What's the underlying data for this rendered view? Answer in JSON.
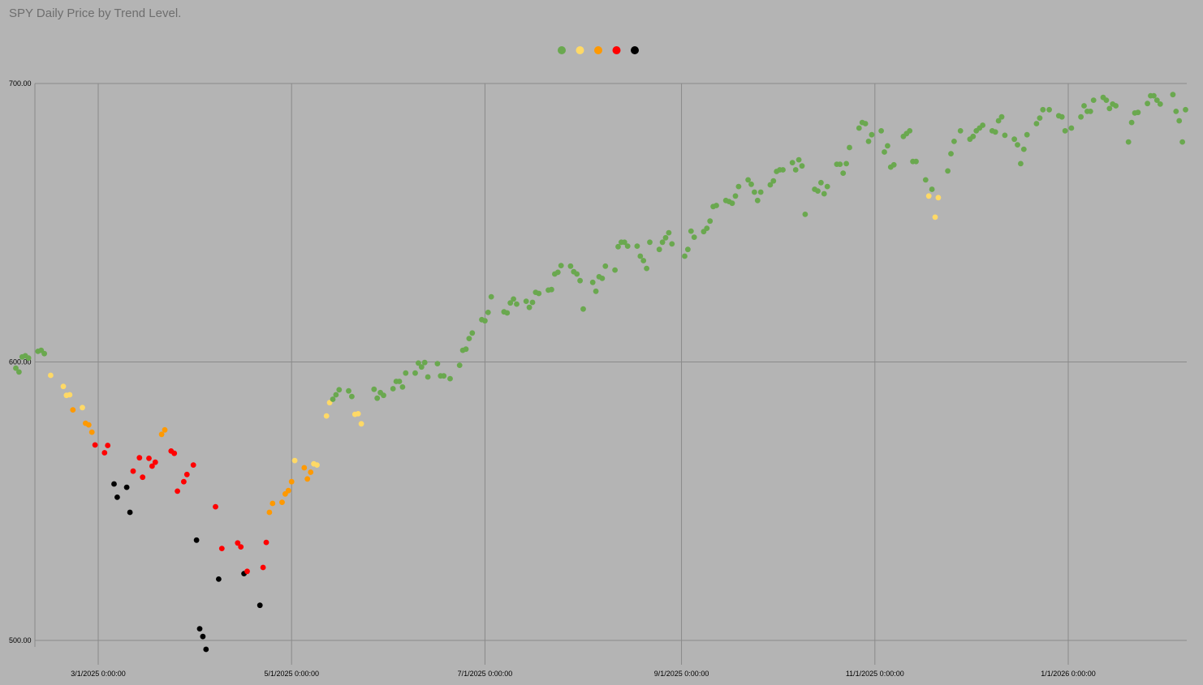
{
  "chart_data": {
    "type": "scatter",
    "title": "SPY Daily Price by Trend Level.",
    "xlabel": "",
    "ylabel": "",
    "ylim": [
      500,
      700
    ],
    "xlim": [
      "2025-02-01",
      "2026-02-28"
    ],
    "y_ticks": [
      "500.00",
      "600.00",
      "700.00"
    ],
    "x_ticks": [
      {
        "date": "2025-03-01",
        "label": "3/1/2025 0:00:00"
      },
      {
        "date": "2025-05-01",
        "label": "5/1/2025 0:00:00"
      },
      {
        "date": "2025-07-01",
        "label": "7/1/2025 0:00:00"
      },
      {
        "date": "2025-09-01",
        "label": "9/1/2025 0:00:00"
      },
      {
        "date": "2025-11-01",
        "label": "11/1/2025 0:00:00"
      },
      {
        "date": "2026-01-01",
        "label": "1/1/2026 0:00:00"
      }
    ],
    "grid": true,
    "legend_position": "top-center",
    "level_colors": [
      "#6aa84f",
      "#ffd966",
      "#ff9900",
      "#ff0000",
      "#000000"
    ],
    "points": [
      [
        "2025-02-03",
        597.8,
        0
      ],
      [
        "2025-02-04",
        596.4,
        0
      ],
      [
        "2025-02-05",
        601.8,
        0
      ],
      [
        "2025-02-06",
        602.2,
        0
      ],
      [
        "2025-02-07",
        601.4,
        0
      ],
      [
        "2025-02-10",
        603.8,
        0
      ],
      [
        "2025-02-11",
        604.2,
        0
      ],
      [
        "2025-02-12",
        603.0,
        0
      ],
      [
        "2025-02-14",
        595.2,
        1
      ],
      [
        "2025-02-18",
        591.2,
        1
      ],
      [
        "2025-02-19",
        588.0,
        1
      ],
      [
        "2025-02-20",
        588.2,
        1
      ],
      [
        "2025-02-21",
        582.8,
        2
      ],
      [
        "2025-02-24",
        583.6,
        1
      ],
      [
        "2025-02-25",
        578.0,
        2
      ],
      [
        "2025-02-26",
        577.4,
        2
      ],
      [
        "2025-02-27",
        574.8,
        2
      ],
      [
        "2025-02-28",
        570.2,
        3
      ],
      [
        "2025-03-03",
        567.4,
        3
      ],
      [
        "2025-03-04",
        570.0,
        3
      ],
      [
        "2025-03-06",
        556.2,
        4
      ],
      [
        "2025-03-07",
        551.4,
        4
      ],
      [
        "2025-03-10",
        555.0,
        4
      ],
      [
        "2025-03-11",
        546.0,
        4
      ],
      [
        "2025-03-12",
        560.8,
        3
      ],
      [
        "2025-03-14",
        565.6,
        3
      ],
      [
        "2025-03-15",
        558.6,
        3
      ],
      [
        "2025-03-17",
        565.4,
        3
      ],
      [
        "2025-03-18",
        562.6,
        3
      ],
      [
        "2025-03-19",
        564.0,
        3
      ],
      [
        "2025-03-21",
        574.0,
        2
      ],
      [
        "2025-03-22",
        575.6,
        2
      ],
      [
        "2025-03-24",
        568.0,
        3
      ],
      [
        "2025-03-25",
        567.2,
        3
      ],
      [
        "2025-03-26",
        553.6,
        3
      ],
      [
        "2025-03-28",
        557.0,
        3
      ],
      [
        "2025-03-29",
        559.6,
        3
      ],
      [
        "2025-03-31",
        563.0,
        3
      ],
      [
        "2025-04-01",
        536.0,
        4
      ],
      [
        "2025-04-02",
        504.2,
        4
      ],
      [
        "2025-04-03",
        501.4,
        4
      ],
      [
        "2025-04-04",
        496.8,
        4
      ],
      [
        "2025-04-07",
        548.0,
        3
      ],
      [
        "2025-04-08",
        522.0,
        4
      ],
      [
        "2025-04-09",
        533.0,
        3
      ],
      [
        "2025-04-14",
        535.0,
        3
      ],
      [
        "2025-04-15",
        533.6,
        3
      ],
      [
        "2025-04-16",
        524.0,
        4
      ],
      [
        "2025-04-17",
        524.8,
        3
      ],
      [
        "2025-04-21",
        512.6,
        4
      ],
      [
        "2025-04-22",
        526.2,
        3
      ],
      [
        "2025-04-23",
        535.2,
        3
      ],
      [
        "2025-04-24",
        546.0,
        2
      ],
      [
        "2025-04-25",
        549.2,
        2
      ],
      [
        "2025-04-28",
        549.6,
        2
      ],
      [
        "2025-04-29",
        552.6,
        2
      ],
      [
        "2025-04-30",
        553.8,
        2
      ],
      [
        "2025-05-01",
        557.0,
        2
      ],
      [
        "2025-05-02",
        564.6,
        1
      ],
      [
        "2025-05-05",
        562.0,
        2
      ],
      [
        "2025-05-06",
        558.0,
        2
      ],
      [
        "2025-05-07",
        560.4,
        2
      ],
      [
        "2025-05-08",
        563.4,
        1
      ],
      [
        "2025-05-09",
        563.0,
        1
      ],
      [
        "2025-05-12",
        580.6,
        1
      ],
      [
        "2025-05-13",
        585.4,
        1
      ],
      [
        "2025-05-14",
        586.6,
        0
      ],
      [
        "2025-05-15",
        588.2,
        0
      ],
      [
        "2025-05-16",
        590.0,
        0
      ],
      [
        "2025-05-19",
        589.6,
        0
      ],
      [
        "2025-05-20",
        587.6,
        0
      ],
      [
        "2025-05-21",
        581.2,
        1
      ],
      [
        "2025-05-22",
        581.4,
        1
      ],
      [
        "2025-05-23",
        577.8,
        1
      ],
      [
        "2025-05-27",
        590.2,
        0
      ],
      [
        "2025-05-28",
        587.0,
        0
      ],
      [
        "2025-05-29",
        589.0,
        0
      ],
      [
        "2025-05-30",
        588.0,
        0
      ],
      [
        "2025-06-02",
        590.4,
        0
      ],
      [
        "2025-06-03",
        593.0,
        0
      ],
      [
        "2025-06-04",
        593.0,
        0
      ],
      [
        "2025-06-05",
        591.0,
        0
      ],
      [
        "2025-06-06",
        596.0,
        0
      ],
      [
        "2025-06-09",
        596.0,
        0
      ],
      [
        "2025-06-10",
        599.6,
        0
      ],
      [
        "2025-06-11",
        598.2,
        0
      ],
      [
        "2025-06-12",
        599.8,
        0
      ],
      [
        "2025-06-13",
        594.6,
        0
      ],
      [
        "2025-06-16",
        599.4,
        0
      ],
      [
        "2025-06-17",
        595.0,
        0
      ],
      [
        "2025-06-18",
        595.0,
        0
      ],
      [
        "2025-06-20",
        594.0,
        0
      ],
      [
        "2025-06-23",
        598.8,
        0
      ],
      [
        "2025-06-24",
        604.2,
        0
      ],
      [
        "2025-06-25",
        604.6,
        0
      ],
      [
        "2025-06-26",
        608.4,
        0
      ],
      [
        "2025-06-27",
        610.4,
        0
      ],
      [
        "2025-06-30",
        615.2,
        0
      ],
      [
        "2025-07-01",
        614.8,
        0
      ],
      [
        "2025-07-02",
        617.8,
        0
      ],
      [
        "2025-07-03",
        623.4,
        0
      ],
      [
        "2025-07-07",
        618.0,
        0
      ],
      [
        "2025-07-08",
        617.6,
        0
      ],
      [
        "2025-07-09",
        621.2,
        0
      ],
      [
        "2025-07-10",
        622.6,
        0
      ],
      [
        "2025-07-11",
        620.8,
        0
      ],
      [
        "2025-07-14",
        621.8,
        0
      ],
      [
        "2025-07-15",
        619.6,
        0
      ],
      [
        "2025-07-16",
        621.4,
        0
      ],
      [
        "2025-07-17",
        625.0,
        0
      ],
      [
        "2025-07-18",
        624.6,
        0
      ],
      [
        "2025-07-21",
        625.8,
        0
      ],
      [
        "2025-07-22",
        626.0,
        0
      ],
      [
        "2025-07-23",
        631.6,
        0
      ],
      [
        "2025-07-24",
        632.2,
        0
      ],
      [
        "2025-07-25",
        634.6,
        0
      ],
      [
        "2025-07-28",
        634.4,
        0
      ],
      [
        "2025-07-29",
        632.4,
        0
      ],
      [
        "2025-07-30",
        631.6,
        0
      ],
      [
        "2025-07-31",
        629.2,
        0
      ],
      [
        "2025-08-01",
        619.0,
        0
      ],
      [
        "2025-08-04",
        628.6,
        0
      ],
      [
        "2025-08-05",
        625.4,
        0
      ],
      [
        "2025-08-06",
        630.6,
        0
      ],
      [
        "2025-08-07",
        630.0,
        0
      ],
      [
        "2025-08-08",
        634.4,
        0
      ],
      [
        "2025-08-11",
        633.0,
        0
      ],
      [
        "2025-08-12",
        641.4,
        0
      ],
      [
        "2025-08-13",
        643.0,
        0
      ],
      [
        "2025-08-14",
        643.0,
        0
      ],
      [
        "2025-08-15",
        641.6,
        0
      ],
      [
        "2025-08-18",
        641.6,
        0
      ],
      [
        "2025-08-19",
        638.0,
        0
      ],
      [
        "2025-08-20",
        636.4,
        0
      ],
      [
        "2025-08-21",
        633.6,
        0
      ],
      [
        "2025-08-22",
        643.0,
        0
      ],
      [
        "2025-08-25",
        640.4,
        0
      ],
      [
        "2025-08-26",
        643.0,
        0
      ],
      [
        "2025-08-27",
        644.6,
        0
      ],
      [
        "2025-08-28",
        646.4,
        0
      ],
      [
        "2025-08-29",
        642.4,
        0
      ],
      [
        "2025-09-02",
        638.0,
        0
      ],
      [
        "2025-09-03",
        640.4,
        0
      ],
      [
        "2025-09-04",
        647.0,
        0
      ],
      [
        "2025-09-05",
        644.8,
        0
      ],
      [
        "2025-09-08",
        646.8,
        0
      ],
      [
        "2025-09-09",
        648.0,
        0
      ],
      [
        "2025-09-10",
        650.6,
        0
      ],
      [
        "2025-09-11",
        655.8,
        0
      ],
      [
        "2025-09-12",
        656.2,
        0
      ],
      [
        "2025-09-15",
        658.0,
        0
      ],
      [
        "2025-09-16",
        657.6,
        0
      ],
      [
        "2025-09-17",
        657.0,
        0
      ],
      [
        "2025-09-18",
        659.6,
        0
      ],
      [
        "2025-09-19",
        663.0,
        0
      ],
      [
        "2025-09-22",
        665.4,
        0
      ],
      [
        "2025-09-23",
        663.8,
        0
      ],
      [
        "2025-09-24",
        661.0,
        0
      ],
      [
        "2025-09-25",
        658.0,
        0
      ],
      [
        "2025-09-26",
        661.0,
        0
      ],
      [
        "2025-09-29",
        663.6,
        0
      ],
      [
        "2025-09-30",
        665.0,
        0
      ],
      [
        "2025-10-01",
        668.4,
        0
      ],
      [
        "2025-10-02",
        669.0,
        0
      ],
      [
        "2025-10-03",
        669.0,
        0
      ],
      [
        "2025-10-06",
        671.6,
        0
      ],
      [
        "2025-10-07",
        669.0,
        0
      ],
      [
        "2025-10-08",
        672.6,
        0
      ],
      [
        "2025-10-09",
        670.4,
        0
      ],
      [
        "2025-10-10",
        653.0,
        0
      ],
      [
        "2025-10-13",
        662.0,
        0
      ],
      [
        "2025-10-14",
        661.4,
        0
      ],
      [
        "2025-10-15",
        664.4,
        0
      ],
      [
        "2025-10-16",
        660.4,
        0
      ],
      [
        "2025-10-17",
        663.0,
        0
      ],
      [
        "2025-10-20",
        671.0,
        0
      ],
      [
        "2025-10-21",
        671.0,
        0
      ],
      [
        "2025-10-22",
        667.8,
        0
      ],
      [
        "2025-10-23",
        671.2,
        0
      ],
      [
        "2025-10-24",
        677.0,
        0
      ],
      [
        "2025-10-27",
        684.0,
        0
      ],
      [
        "2025-10-28",
        686.0,
        0
      ],
      [
        "2025-10-29",
        685.6,
        0
      ],
      [
        "2025-10-30",
        679.2,
        0
      ],
      [
        "2025-10-31",
        681.6,
        0
      ],
      [
        "2025-11-03",
        683.0,
        0
      ],
      [
        "2025-11-04",
        675.4,
        0
      ],
      [
        "2025-11-05",
        677.6,
        0
      ],
      [
        "2025-11-06",
        670.0,
        0
      ],
      [
        "2025-11-07",
        670.8,
        0
      ],
      [
        "2025-11-10",
        681.0,
        0
      ],
      [
        "2025-11-11",
        682.0,
        0
      ],
      [
        "2025-11-12",
        683.0,
        0
      ],
      [
        "2025-11-13",
        672.0,
        0
      ],
      [
        "2025-11-14",
        672.0,
        0
      ],
      [
        "2025-11-17",
        665.4,
        0
      ],
      [
        "2025-11-18",
        659.6,
        1
      ],
      [
        "2025-11-19",
        662.0,
        0
      ],
      [
        "2025-11-20",
        652.0,
        1
      ],
      [
        "2025-11-21",
        659.0,
        1
      ],
      [
        "2025-11-24",
        668.6,
        0
      ],
      [
        "2025-11-25",
        674.8,
        0
      ],
      [
        "2025-11-26",
        679.2,
        0
      ],
      [
        "2025-11-28",
        683.0,
        0
      ],
      [
        "2025-12-01",
        680.0,
        0
      ],
      [
        "2025-12-02",
        681.0,
        0
      ],
      [
        "2025-12-03",
        683.0,
        0
      ],
      [
        "2025-12-04",
        684.0,
        0
      ],
      [
        "2025-12-05",
        685.0,
        0
      ],
      [
        "2025-12-08",
        683.0,
        0
      ],
      [
        "2025-12-09",
        682.6,
        0
      ],
      [
        "2025-12-10",
        686.6,
        0
      ],
      [
        "2025-12-11",
        688.0,
        0
      ],
      [
        "2025-12-12",
        681.4,
        0
      ],
      [
        "2025-12-15",
        680.0,
        0
      ],
      [
        "2025-12-16",
        678.0,
        0
      ],
      [
        "2025-12-17",
        671.2,
        0
      ],
      [
        "2025-12-18",
        676.4,
        0
      ],
      [
        "2025-12-19",
        681.6,
        0
      ],
      [
        "2025-12-22",
        685.6,
        0
      ],
      [
        "2025-12-23",
        687.6,
        0
      ],
      [
        "2025-12-24",
        690.6,
        0
      ],
      [
        "2025-12-26",
        690.6,
        0
      ],
      [
        "2025-12-29",
        688.4,
        0
      ],
      [
        "2025-12-30",
        688.0,
        0
      ],
      [
        "2025-12-31",
        683.0,
        0
      ],
      [
        "2026-01-02",
        684.0,
        0
      ],
      [
        "2026-01-05",
        688.0,
        0
      ],
      [
        "2026-01-06",
        692.0,
        0
      ],
      [
        "2026-01-07",
        690.0,
        0
      ],
      [
        "2026-01-08",
        690.0,
        0
      ],
      [
        "2026-01-09",
        694.0,
        0
      ],
      [
        "2026-01-12",
        695.0,
        0
      ],
      [
        "2026-01-13",
        694.0,
        0
      ],
      [
        "2026-01-14",
        691.0,
        0
      ],
      [
        "2026-01-15",
        692.6,
        0
      ],
      [
        "2026-01-16",
        692.0,
        0
      ],
      [
        "2026-01-20",
        679.0,
        0
      ],
      [
        "2026-01-21",
        686.0,
        0
      ],
      [
        "2026-01-22",
        689.4,
        0
      ],
      [
        "2026-01-23",
        689.6,
        0
      ],
      [
        "2026-01-26",
        692.8,
        0
      ],
      [
        "2026-01-27",
        695.6,
        0
      ],
      [
        "2026-01-28",
        695.6,
        0
      ],
      [
        "2026-01-29",
        694.0,
        0
      ],
      [
        "2026-01-30",
        692.6,
        0
      ],
      [
        "2026-02-03",
        696.0,
        0
      ],
      [
        "2026-02-04",
        690.0,
        0
      ],
      [
        "2026-02-05",
        686.6,
        0
      ],
      [
        "2026-02-06",
        679.0,
        0
      ],
      [
        "2026-02-07",
        690.6,
        0
      ]
    ]
  }
}
